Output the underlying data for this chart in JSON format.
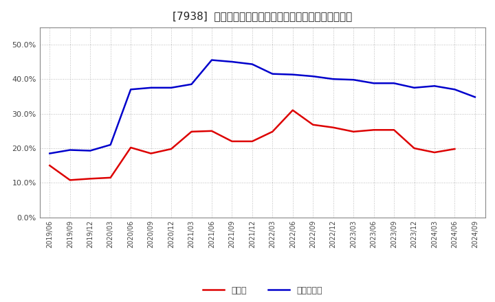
{
  "title": "[7938]  現須金、有利子負債の総資産に対する比率の推移",
  "ylim": [
    0.0,
    0.55
  ],
  "yticks": [
    0.0,
    0.1,
    0.2,
    0.3,
    0.4,
    0.5
  ],
  "background_color": "#ffffff",
  "grid_color": "#aaaaaa",
  "dates": [
    "2019/06",
    "2019/09",
    "2019/12",
    "2020/03",
    "2020/06",
    "2020/09",
    "2020/12",
    "2021/03",
    "2021/06",
    "2021/09",
    "2021/12",
    "2022/03",
    "2022/06",
    "2022/09",
    "2022/12",
    "2023/03",
    "2023/06",
    "2023/09",
    "2023/12",
    "2024/03",
    "2024/06",
    "2024/09"
  ],
  "cash": [
    0.15,
    0.108,
    0.112,
    0.115,
    0.202,
    0.185,
    0.198,
    0.248,
    0.25,
    0.22,
    0.22,
    0.248,
    0.31,
    0.268,
    0.26,
    0.248,
    0.253,
    0.253,
    0.2,
    0.188,
    0.198,
    null
  ],
  "debt": [
    0.185,
    0.195,
    0.193,
    0.21,
    0.37,
    0.375,
    0.375,
    0.385,
    0.455,
    0.45,
    0.443,
    0.415,
    0.413,
    0.408,
    0.4,
    0.398,
    0.388,
    0.388,
    0.375,
    0.38,
    0.37,
    0.348
  ],
  "cash_color": "#dd0000",
  "debt_color": "#0000cc",
  "legend_cash": "現須金",
  "legend_debt": "有利子負債",
  "title_fontsize": 11,
  "tick_fontsize": 8,
  "legend_fontsize": 9
}
